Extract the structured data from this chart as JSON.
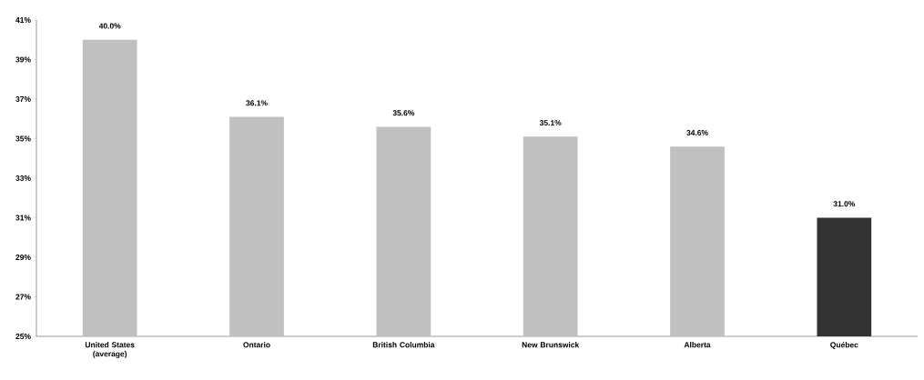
{
  "chart_data": {
    "type": "bar",
    "categories": [
      "United States (average)",
      "Ontario",
      "British Columbia",
      "New Brunswick",
      "Alberta",
      "Québec"
    ],
    "values": [
      40.0,
      36.1,
      35.6,
      35.1,
      34.6,
      31.0
    ],
    "colors": [
      "#c0c0c0",
      "#c0c0c0",
      "#c0c0c0",
      "#c0c0c0",
      "#c0c0c0",
      "#333333"
    ],
    "value_labels": [
      "40.0%",
      "36.1%",
      "35.6%",
      "35.1%",
      "34.6%",
      "31.0%"
    ],
    "ylim": [
      25,
      41
    ],
    "yticks": [
      {
        "value": 25,
        "label": "25%"
      },
      {
        "value": 27,
        "label": "27%"
      },
      {
        "value": 29,
        "label": "29%"
      },
      {
        "value": 31,
        "label": "31%"
      },
      {
        "value": 33,
        "label": "33%"
      },
      {
        "value": 35,
        "label": "35%"
      },
      {
        "value": 37,
        "label": "37%"
      },
      {
        "value": 39,
        "label": "39%"
      },
      {
        "value": 41,
        "label": "41%"
      }
    ]
  }
}
